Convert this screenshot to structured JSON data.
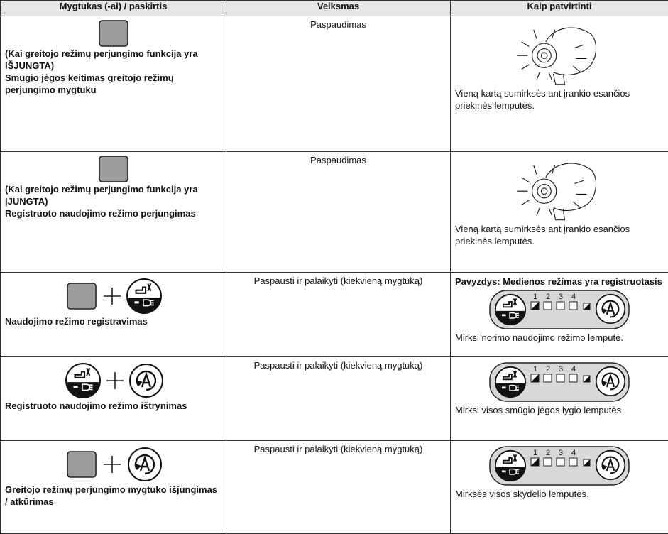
{
  "table": {
    "header": [
      "Mygtukas (-ai) / paskirtis",
      "Veiksmas",
      "Kaip patvirtinti"
    ],
    "rows": [
      {
        "label": [
          "(Kai greitojo režimų perjungimo funkcija yra IŠJUNGTA)",
          "Smūgio jėgos keitimas greitojo režimų perjungimo mygtuku"
        ],
        "action": "Paspaudimas",
        "result": "Vieną kartą sumirksės ant įrankio esančios priekinės lemputės."
      },
      {
        "label": [
          "(Kai greitojo režimų perjungimo funkcija yra ĮJUNGTA)",
          "Registruoto naudojimo režimo perjungimas"
        ],
        "action": "Paspaudimas",
        "result": "Vieną kartą sumirksės ant įrankio esančios priekinės lemputės."
      },
      {
        "label": [
          "Naudojimo režimo registravimas"
        ],
        "action": "Paspausti ir palaikyti (kiekvieną mygtuką)",
        "note": "Pavyzdys: Medienos režimas yra registruotasis",
        "result": "Mirksi norimo naudojimo režimo lemputė."
      },
      {
        "label": [
          "Registruoto naudojimo režimo ištrynimas"
        ],
        "action": "Paspausti ir palaikyti (kiekvieną mygtuką)",
        "result": "Mirksi visos smūgio jėgos lygio lemputės"
      },
      {
        "label": [
          "Greitojo režimų perjungimo mygtuko išjungimas / atkūrimas"
        ],
        "action": "Paspausti ir palaikyti (kiekvieną mygtuką)",
        "result": "Mirksės visos skydelio lemputės."
      }
    ],
    "panel_numbers": [
      "1",
      "2",
      "3",
      "4"
    ]
  }
}
